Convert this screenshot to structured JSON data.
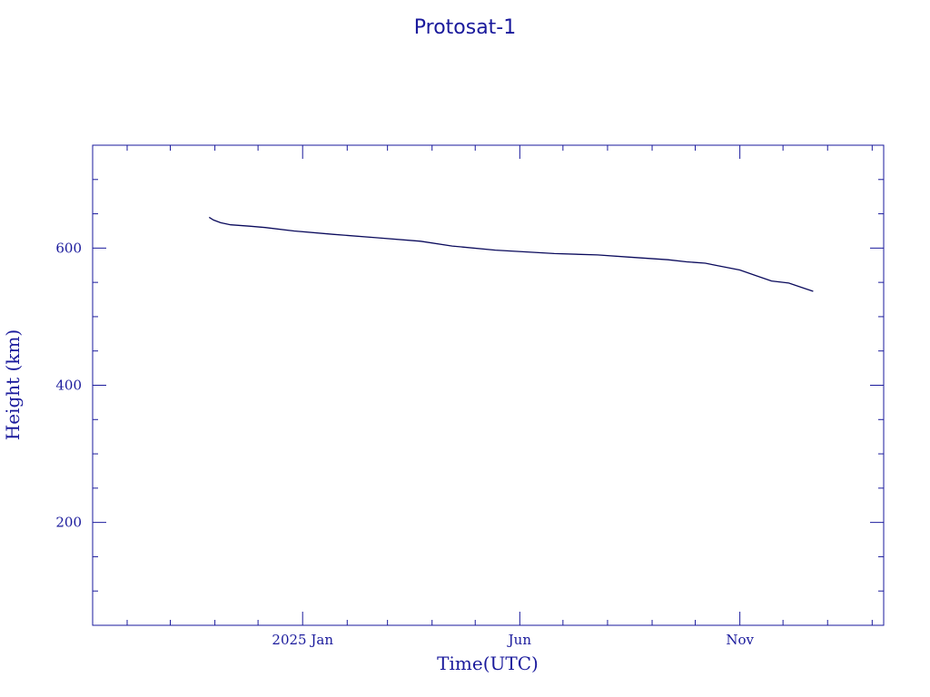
{
  "chart_data": {
    "type": "line",
    "title": "Protosat-1",
    "xlabel": "Time(UTC)",
    "ylabel": "Height (km)",
    "x_tick_labels": [
      {
        "date": "2025-01-01",
        "label": "2025 Jan"
      },
      {
        "date": "2025-06-01",
        "label": "Jun"
      },
      {
        "date": "2025-11-01",
        "label": "Nov"
      }
    ],
    "y_tick_labels": [
      {
        "value": 200,
        "label": "200"
      },
      {
        "value": 400,
        "label": "400"
      },
      {
        "value": 600,
        "label": "600"
      }
    ],
    "xlim": [
      "2024-08-08",
      "2026-02-09"
    ],
    "ylim": [
      50,
      750
    ],
    "grid": false,
    "series": [
      {
        "color": "#0a0a5c",
        "x": [
          "2024-10-28",
          "2024-10-31",
          "2024-11-05",
          "2024-11-12",
          "2024-11-25",
          "2024-12-06",
          "2024-12-26",
          "2025-01-22",
          "2025-02-22",
          "2025-03-24",
          "2025-04-15",
          "2025-05-15",
          "2025-06-25",
          "2025-07-25",
          "2025-08-15",
          "2025-09-12",
          "2025-09-25",
          "2025-10-08",
          "2025-10-15",
          "2025-11-01",
          "2025-11-12",
          "2025-11-23",
          "2025-12-05",
          "2025-12-15",
          "2025-12-22"
        ],
        "y": [
          645,
          641,
          637,
          634,
          632,
          630,
          625,
          620,
          615,
          610,
          603,
          597,
          592,
          590,
          587,
          583,
          580,
          578,
          575,
          568,
          560,
          552,
          549,
          542,
          537
        ]
      }
    ]
  }
}
